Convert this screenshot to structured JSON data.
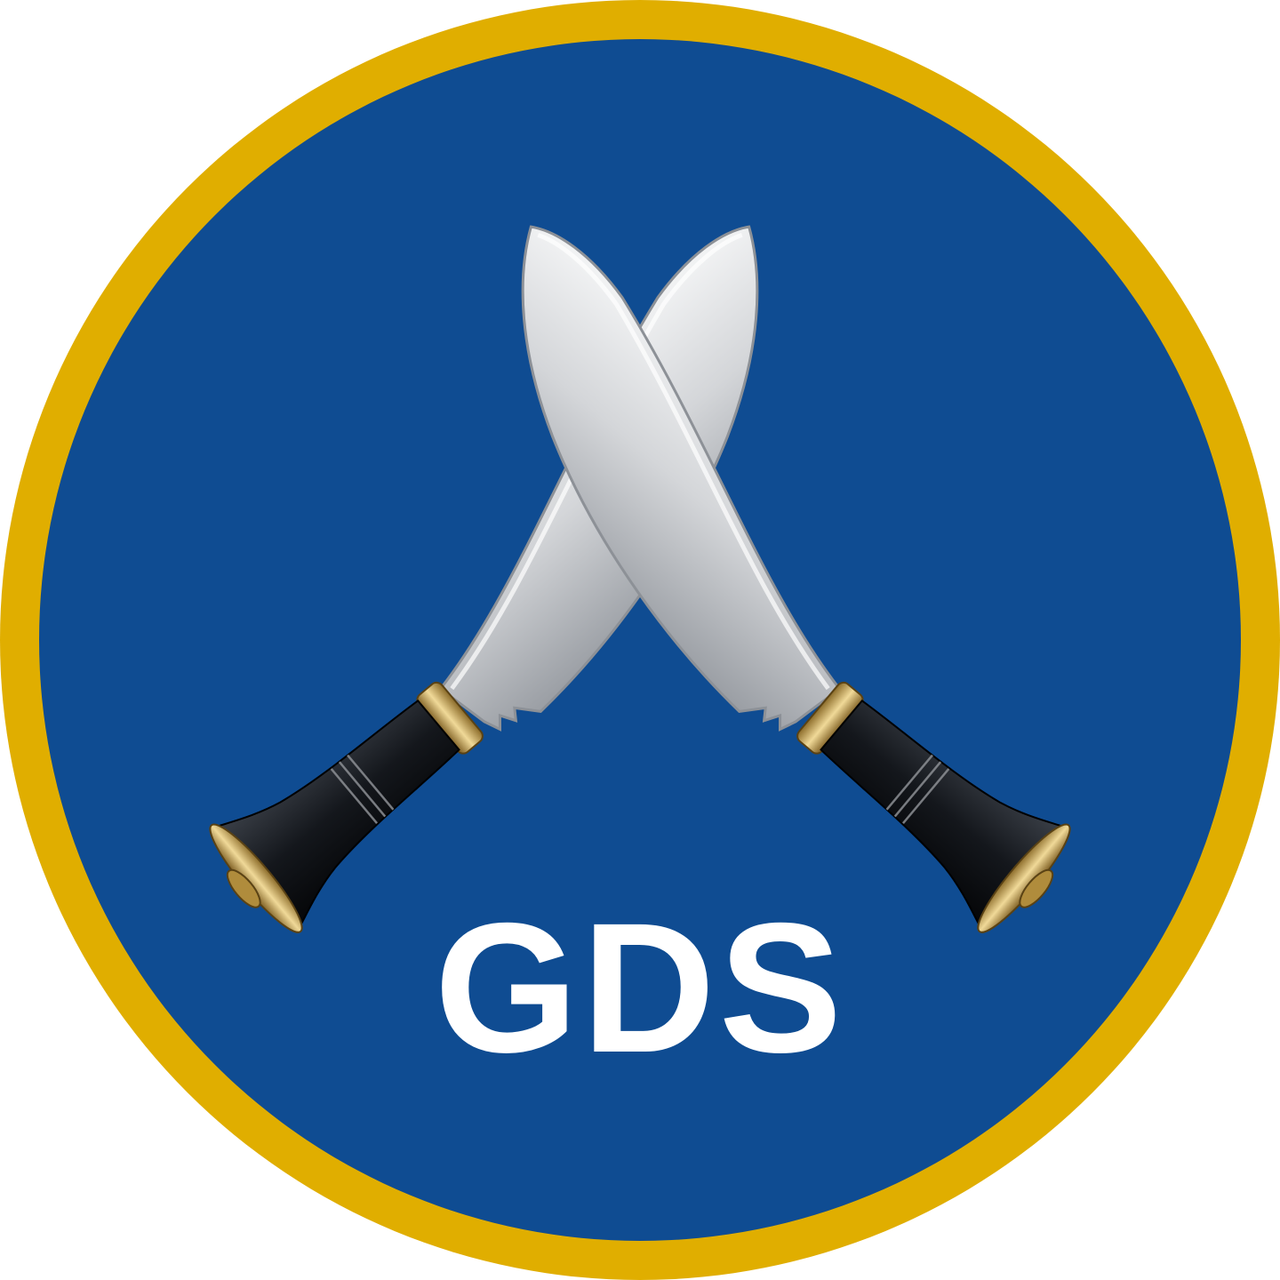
{
  "badge": {
    "text": "GDS",
    "emblem": "crossed-kukri-knives-icon",
    "colors": {
      "outer_ring": "#E0AE00",
      "field": "#0F4C92",
      "text": "#FFFFFF",
      "blade": "#D8D9DB",
      "handle": "#14171C",
      "brass": "#C9A24A"
    }
  }
}
